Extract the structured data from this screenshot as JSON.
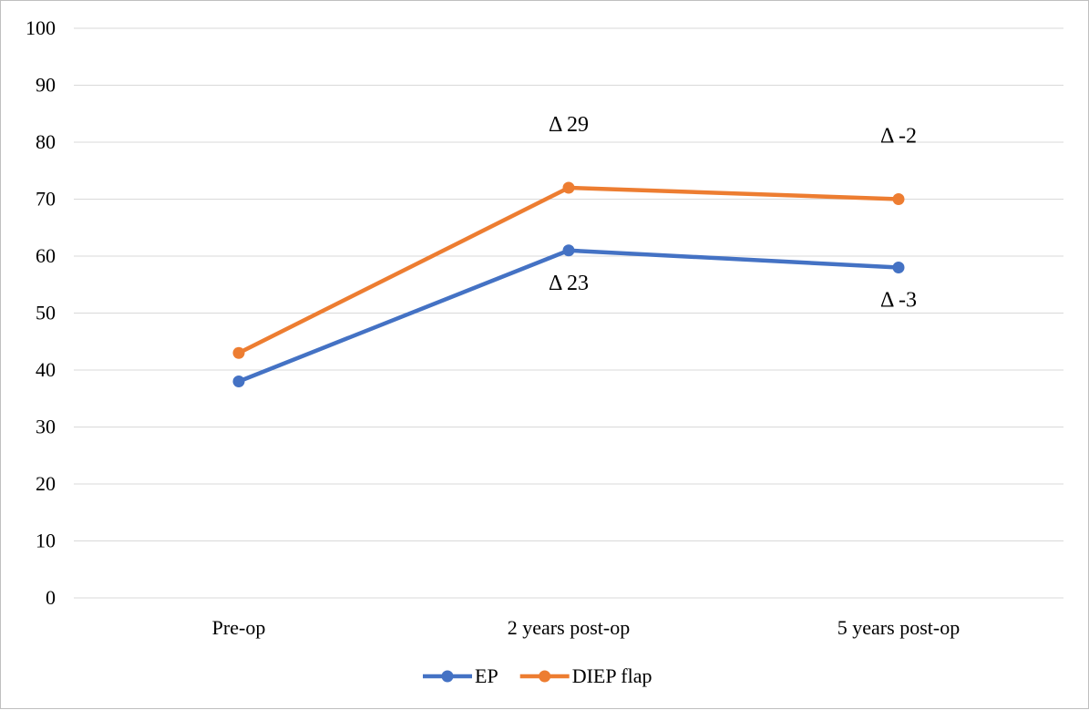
{
  "chart_data": {
    "type": "line",
    "categories": [
      "Pre-op",
      "2 years post-op",
      "5 years post-op"
    ],
    "ylim": [
      0,
      100
    ],
    "yticks": [
      0,
      10,
      20,
      30,
      40,
      50,
      60,
      70,
      80,
      90,
      100
    ],
    "grid": true,
    "legend_position": "bottom",
    "series": [
      {
        "name": "EP",
        "color": "#4472C4",
        "values": [
          38,
          61,
          58
        ]
      },
      {
        "name": "DIEP flap",
        "color": "#ED7D31",
        "values": [
          43,
          72,
          70
        ]
      }
    ],
    "annotations": [
      {
        "text": "Δ 29",
        "series": "DIEP flap",
        "category": "2 years post-op",
        "placement": "above"
      },
      {
        "text": "Δ -2",
        "series": "DIEP flap",
        "category": "5 years post-op",
        "placement": "above"
      },
      {
        "text": "Δ 23",
        "series": "EP",
        "category": "2 years post-op",
        "placement": "below"
      },
      {
        "text": "Δ -3",
        "series": "EP",
        "category": "5 years post-op",
        "placement": "below"
      }
    ]
  }
}
